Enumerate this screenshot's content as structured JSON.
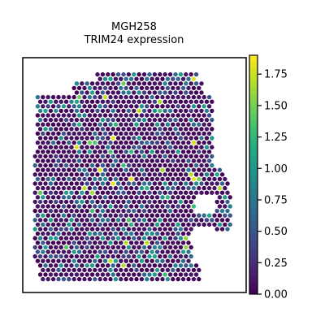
{
  "chart_data": {
    "type": "scatter",
    "title_line1": "MGH258",
    "title_line2": "TRIM24 expression",
    "xlabel": "",
    "ylabel": "",
    "colorbar": {
      "colormap": "viridis",
      "range": [
        0.0,
        1.9
      ],
      "tick_values": [
        0.0,
        0.25,
        0.5,
        0.75,
        1.0,
        1.25,
        1.5,
        1.75
      ],
      "tick_labels": [
        "0.00",
        "0.25",
        "0.50",
        "0.75",
        "1.00",
        "1.25",
        "1.50",
        "1.75"
      ]
    },
    "tissue_outline_desc": "spatial spot map (hex grid), values mostly near 0 with scattered higher spots",
    "seed": 258,
    "point_color_scale": "viridis"
  }
}
